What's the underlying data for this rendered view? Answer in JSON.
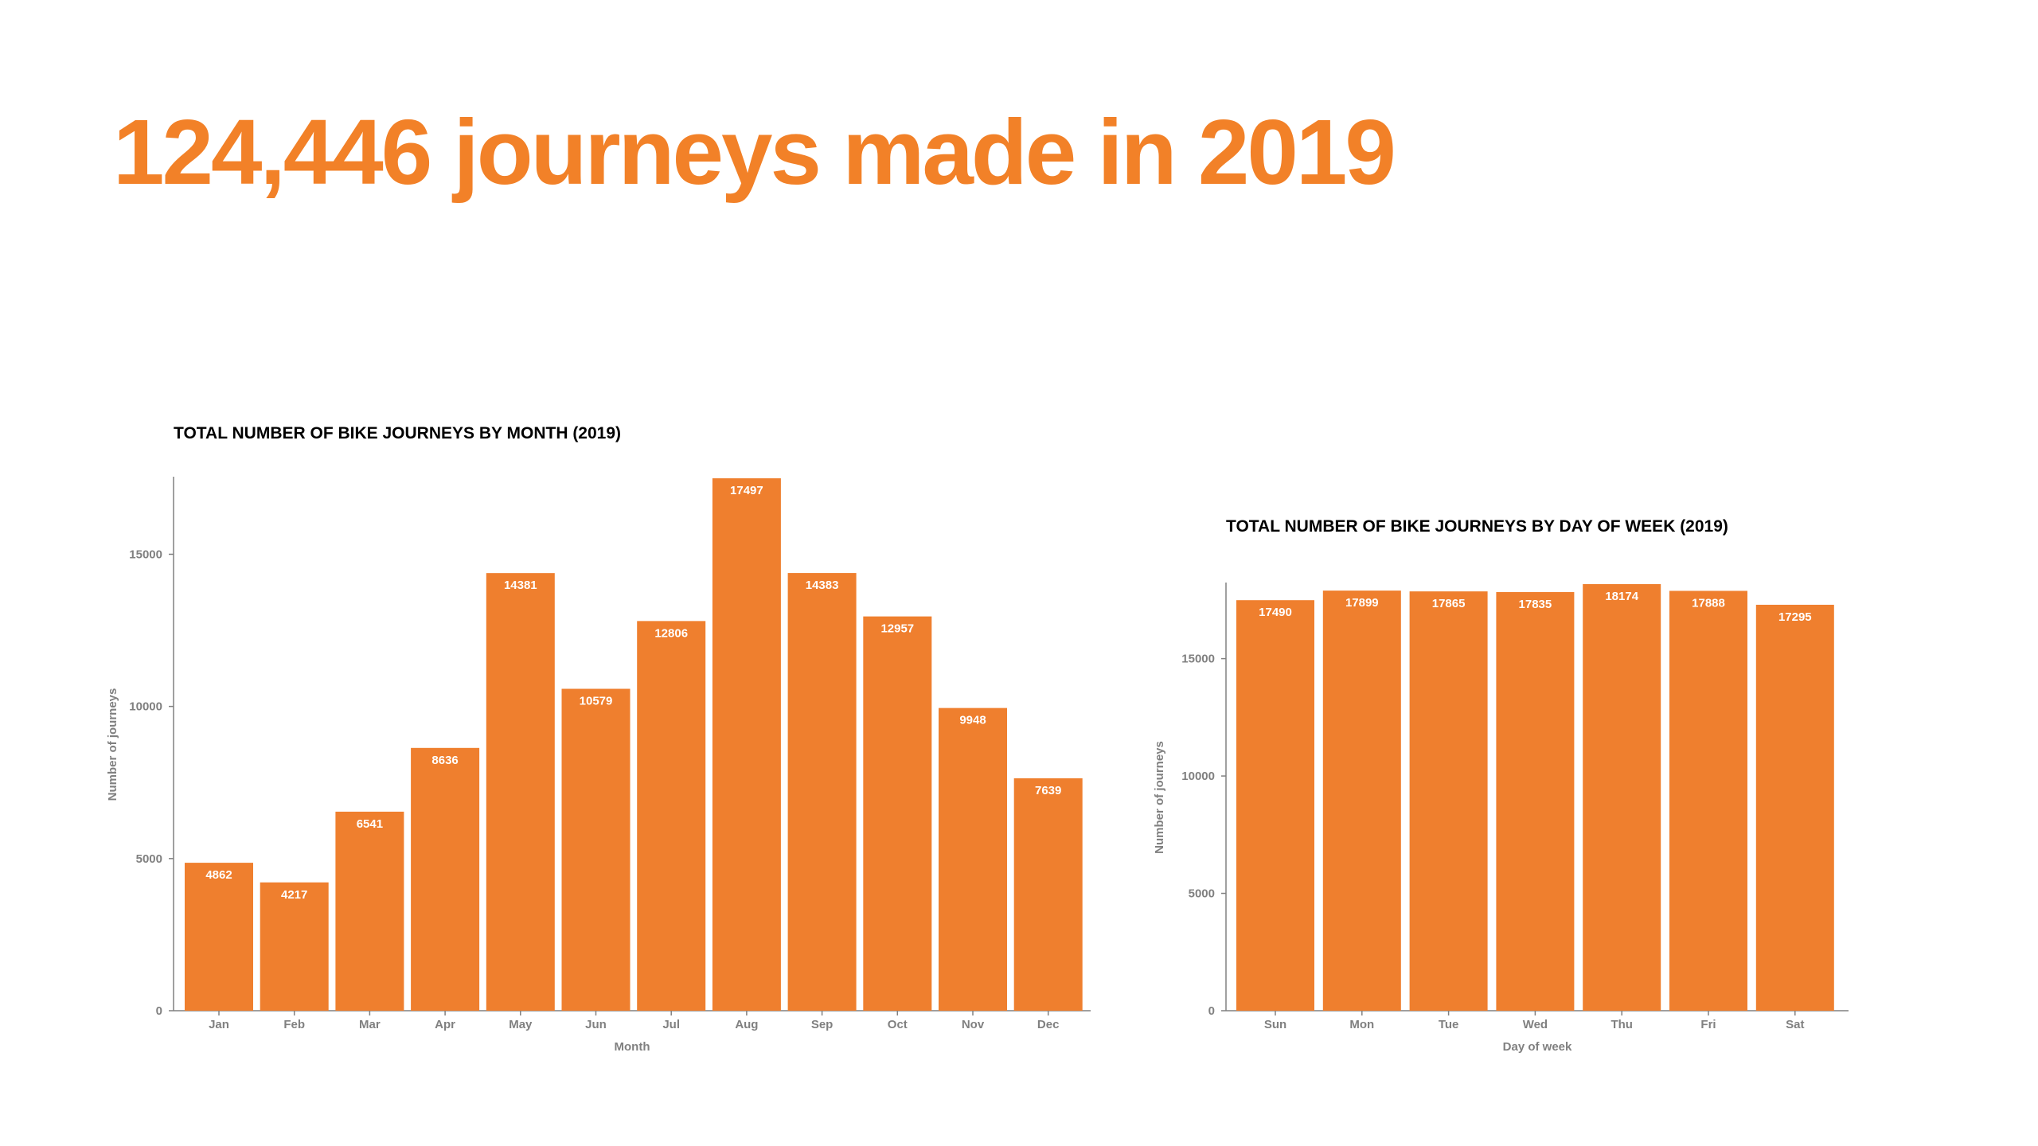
{
  "headline": "124,446 journeys made in 2019",
  "colors": {
    "accent": "#F28128",
    "bar": "#EF7F2E",
    "axis": "#808080"
  },
  "chart_data": [
    {
      "type": "bar",
      "title": "TOTAL NUMBER OF BIKE JOURNEYS BY MONTH (2019)",
      "xlabel": "Month",
      "ylabel": "Number of journeys",
      "categories": [
        "Jan",
        "Feb",
        "Mar",
        "Apr",
        "May",
        "Jun",
        "Jul",
        "Aug",
        "Sep",
        "Oct",
        "Nov",
        "Dec"
      ],
      "values": [
        4862,
        4217,
        6541,
        8636,
        14381,
        10579,
        12806,
        17497,
        14383,
        12957,
        9948,
        7639
      ],
      "yticks": [
        0,
        5000,
        10000,
        15000
      ],
      "ylim": [
        0,
        17497
      ],
      "grid": false,
      "data_labels": true
    },
    {
      "type": "bar",
      "title": "TOTAL NUMBER OF BIKE JOURNEYS BY DAY OF WEEK (2019)",
      "xlabel": "Day of week",
      "ylabel": "Number of journeys",
      "categories": [
        "Sun",
        "Mon",
        "Tue",
        "Wed",
        "Thu",
        "Fri",
        "Sat"
      ],
      "values": [
        17490,
        17899,
        17865,
        17835,
        18174,
        17888,
        17295
      ],
      "yticks": [
        0,
        5000,
        10000,
        15000
      ],
      "ylim": [
        0,
        18174
      ],
      "grid": false,
      "data_labels": true
    }
  ]
}
